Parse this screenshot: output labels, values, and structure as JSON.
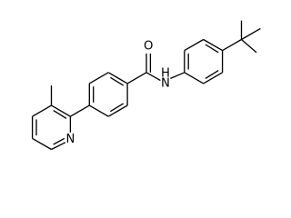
{
  "atoms": {
    "carbonyl_oxygen": "O",
    "amide_nitrogen": "N",
    "amide_hydrogen": "H",
    "pyridine_nitrogen": "N"
  }
}
